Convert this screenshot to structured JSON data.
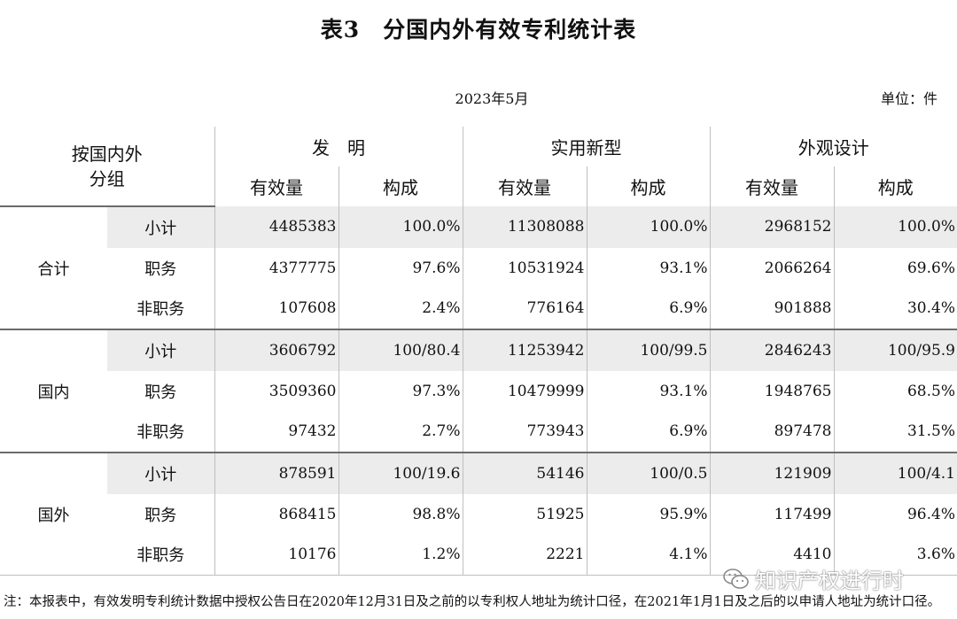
{
  "title": "表3　分国内外有效专利统计表",
  "date": "2023年5月",
  "unit": "单位：件",
  "header": {
    "group_col": "按国内外分组",
    "categories": [
      "发　明",
      "实用新型",
      "外观设计"
    ],
    "sub_count": "有效量",
    "sub_share": "构成"
  },
  "groups": [
    {
      "name": "合计",
      "rows": [
        {
          "label": "小计",
          "values": [
            "4485383",
            "100.0%",
            "11308088",
            "100.0%",
            "2968152",
            "100.0%"
          ]
        },
        {
          "label": "职务",
          "values": [
            "4377775",
            "97.6%",
            "10531924",
            "93.1%",
            "2066264",
            "69.6%"
          ]
        },
        {
          "label": "非职务",
          "values": [
            "107608",
            "2.4%",
            "776164",
            "6.9%",
            "901888",
            "30.4%"
          ]
        }
      ]
    },
    {
      "name": "国内",
      "rows": [
        {
          "label": "小计",
          "values": [
            "3606792",
            "100/80.4",
            "11253942",
            "100/99.5",
            "2846243",
            "100/95.9"
          ]
        },
        {
          "label": "职务",
          "values": [
            "3509360",
            "97.3%",
            "10479999",
            "93.1%",
            "1948765",
            "68.5%"
          ]
        },
        {
          "label": "非职务",
          "values": [
            "97432",
            "2.7%",
            "773943",
            "6.9%",
            "897478",
            "31.5%"
          ]
        }
      ]
    },
    {
      "name": "国外",
      "rows": [
        {
          "label": "小计",
          "values": [
            "878591",
            "100/19.6",
            "54146",
            "100/0.5",
            "121909",
            "100/4.1"
          ]
        },
        {
          "label": "职务",
          "values": [
            "868415",
            "98.8%",
            "51925",
            "95.9%",
            "117499",
            "96.4%"
          ]
        },
        {
          "label": "非职务",
          "values": [
            "10176",
            "1.2%",
            "2221",
            "4.1%",
            "4410",
            "3.6%"
          ]
        }
      ]
    }
  ],
  "note": "注：本报表中，有效发明专利统计数据中授权公告日在2020年12月31日及之前的以专利权人地址为统计口径，在2021年1月1日及之后的以申请人地址为统计口径。",
  "watermark": {
    "text": "知识产权进行时",
    "icon": "wechat-icon"
  }
}
